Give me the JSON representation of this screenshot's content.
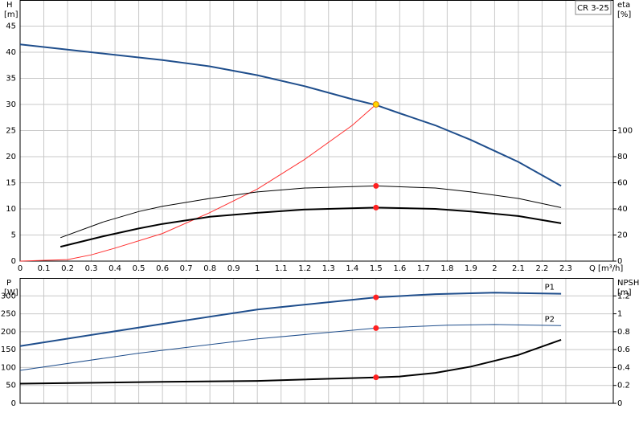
{
  "chart_data": [
    {
      "type": "line",
      "label": "CR 3-25",
      "ylabel": "H",
      "yunit": "[m]",
      "y2label": "eta",
      "y2unit": "[%]",
      "xlabel": "Q [m³/h]",
      "xlim": [
        0,
        2.5
      ],
      "xticks": [
        0,
        0.1,
        0.2,
        0.3,
        0.4,
        0.5,
        0.6,
        0.7,
        0.8,
        0.9,
        1.0,
        1.1,
        1.2,
        1.3,
        1.4,
        1.5,
        1.6,
        1.7,
        1.8,
        1.9,
        2.0,
        2.1,
        2.2,
        2.3
      ],
      "xtick_labels": true,
      "ylim": [
        0,
        50
      ],
      "yticks": [
        0,
        5,
        10,
        15,
        20,
        25,
        30,
        35,
        40,
        45
      ],
      "y2lim": [
        0,
        200
      ],
      "y2ticks": [
        0,
        20,
        40,
        60,
        80,
        100
      ],
      "grid": true,
      "series": [
        {
          "color": "#1f4e8c",
          "width": 2,
          "x": [
            0,
            0.6,
            0.8,
            1.0,
            1.2,
            1.4,
            1.5,
            1.6,
            1.75,
            1.9,
            2.1,
            2.28
          ],
          "values": [
            41.5,
            38.5,
            37.3,
            35.6,
            33.5,
            31,
            29.9,
            28.3,
            26,
            23.2,
            19,
            14.4
          ]
        },
        {
          "color": "#ff3030",
          "width": 1,
          "x": [
            0,
            0.2,
            0.3,
            0.4,
            0.6,
            0.8,
            1.0,
            1.2,
            1.4,
            1.5
          ],
          "values": [
            0,
            0.3,
            1.2,
            2.5,
            5.3,
            9.3,
            13.8,
            19.5,
            26,
            30
          ]
        },
        {
          "color": "#000000",
          "width": 1,
          "axis": "y2",
          "x": [
            0.17,
            0.35,
            0.5,
            0.6,
            0.8,
            1.0,
            1.2,
            1.5,
            1.75,
            1.9,
            2.1,
            2.28
          ],
          "values": [
            18,
            30,
            38,
            42,
            48,
            53,
            56,
            57.6,
            56,
            53,
            48,
            41
          ]
        },
        {
          "color": "#000000",
          "width": 2,
          "axis": "y2",
          "x": [
            0.17,
            0.35,
            0.5,
            0.6,
            0.8,
            1.0,
            1.2,
            1.5,
            1.75,
            1.9,
            2.1,
            2.28
          ],
          "values": [
            11,
            19,
            25,
            28.5,
            34,
            37,
            39.5,
            41,
            40,
            38,
            34.5,
            29
          ]
        }
      ],
      "points": [
        {
          "x": 1.5,
          "y": 30,
          "color": "#ffd700"
        },
        {
          "x": 1.5,
          "y": 57.6,
          "color": "#ff2020",
          "axis": "y2"
        },
        {
          "x": 1.5,
          "y": 41,
          "color": "#ff2020",
          "axis": "y2"
        }
      ]
    },
    {
      "type": "line",
      "ylabel": "P",
      "yunit": "[W]",
      "y2label": "NPSH",
      "y2unit": "[m]",
      "xlim": [
        0,
        2.5
      ],
      "xticks": [
        0,
        0.1,
        0.2,
        0.3,
        0.4,
        0.5,
        0.6,
        0.7,
        0.8,
        0.9,
        1.0,
        1.1,
        1.2,
        1.3,
        1.4,
        1.5,
        1.6,
        1.7,
        1.8,
        1.9,
        2.0,
        2.1,
        2.2,
        2.3
      ],
      "xtick_labels": false,
      "ylim": [
        0,
        350
      ],
      "yticks": [
        0,
        50,
        100,
        150,
        200,
        250,
        300
      ],
      "y2lim": [
        0,
        1.4
      ],
      "y2ticks": [
        0,
        0.2,
        0.4,
        0.6,
        0.8,
        1.0,
        1.2
      ],
      "grid": true,
      "series": [
        {
          "name": "P1",
          "color": "#1f4e8c",
          "width": 2,
          "x": [
            0,
            0.6,
            1.0,
            1.5,
            1.75,
            2.0,
            2.28
          ],
          "values": [
            160,
            222,
            262,
            296,
            305,
            309,
            306
          ]
        },
        {
          "name": "P2",
          "color": "#1f4e8c",
          "width": 1,
          "x": [
            0,
            0.5,
            1.0,
            1.5,
            1.8,
            2.0,
            2.28
          ],
          "values": [
            92,
            140,
            180,
            210,
            218,
            220,
            217
          ]
        },
        {
          "color": "#000000",
          "width": 2,
          "axis": "y2",
          "x": [
            0,
            0.6,
            1.0,
            1.5,
            1.6,
            1.75,
            1.9,
            2.1,
            2.28
          ],
          "values": [
            0.22,
            0.24,
            0.25,
            0.29,
            0.3,
            0.34,
            0.41,
            0.54,
            0.71
          ]
        }
      ],
      "points": [
        {
          "x": 1.5,
          "y": 296,
          "color": "#ff2020"
        },
        {
          "x": 1.5,
          "y": 210,
          "color": "#ff2020"
        },
        {
          "x": 1.5,
          "y": 0.29,
          "color": "#ff2020",
          "axis": "y2"
        }
      ]
    }
  ]
}
